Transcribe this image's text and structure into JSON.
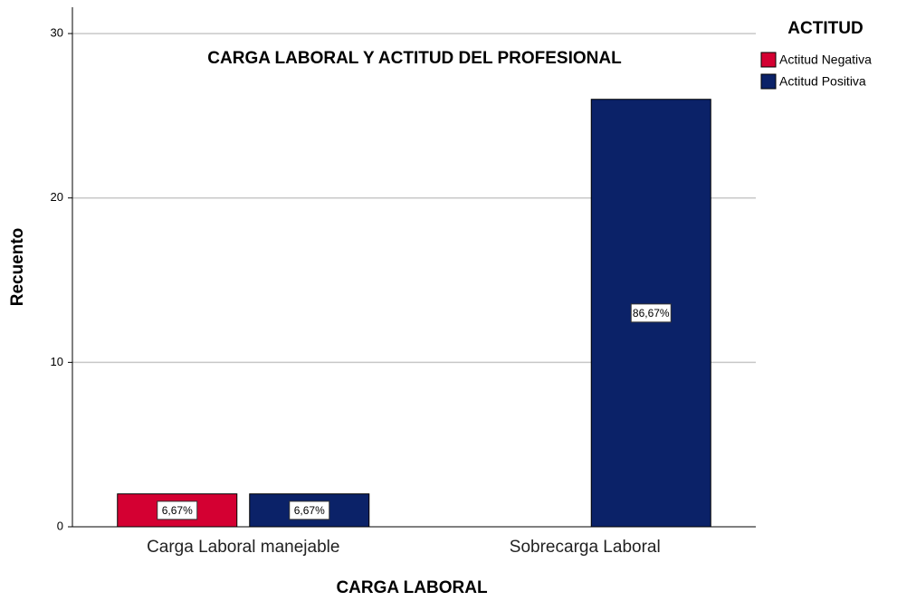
{
  "chart_data": {
    "type": "bar",
    "title": "CARGA LABORAL Y ACTITUD DEL PROFESIONAL",
    "x_label": "CARGA LABORAL",
    "y_label": "Recuento",
    "legend_title": "ACTITUD",
    "categories": [
      "Carga Laboral manejable",
      "Sobrecarga Laboral"
    ],
    "series": [
      {
        "name": "Actitud Negativa",
        "color": "#d40032",
        "values": [
          2,
          null
        ],
        "data_labels": [
          "6,67%",
          null
        ]
      },
      {
        "name": "Actitud Positiva",
        "color": "#0b2268",
        "values": [
          2,
          26
        ],
        "data_labels": [
          "6,67%",
          "86,67%"
        ]
      }
    ],
    "ylim": [
      0,
      31.6
    ],
    "yticks": [
      0,
      10,
      20,
      30
    ],
    "grid": true,
    "legend": "top-right"
  }
}
